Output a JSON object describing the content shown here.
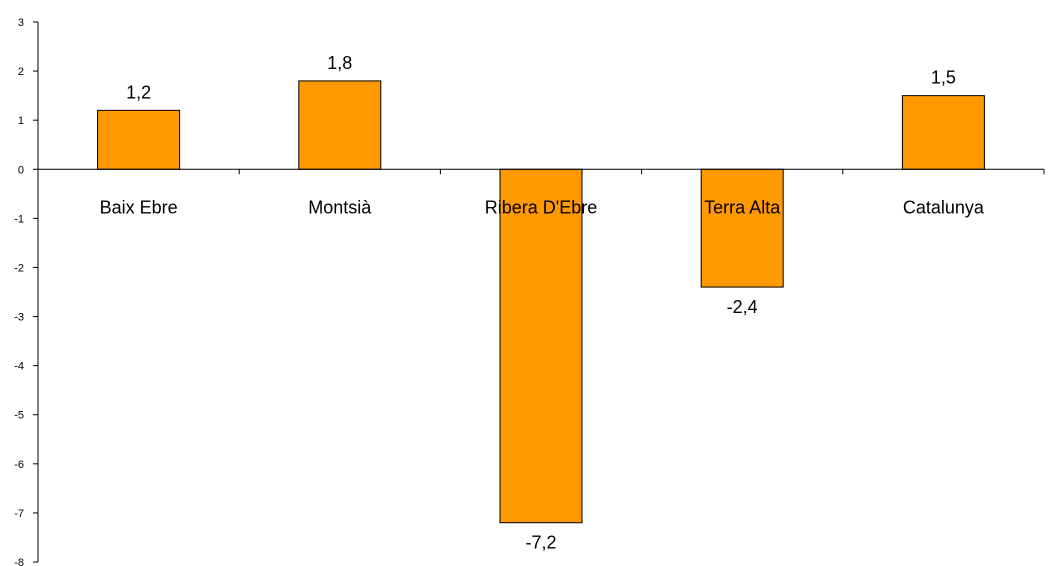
{
  "chart_data": {
    "type": "bar",
    "categories": [
      "Baix Ebre",
      "Montsià",
      "Ribera D'Ebre",
      "Terra Alta",
      "Catalunya"
    ],
    "values": [
      1.2,
      1.8,
      -7.2,
      -2.4,
      1.5
    ],
    "value_labels": [
      "1,2",
      "1,8",
      "-7,2",
      "-2,4",
      "1,5"
    ],
    "ylim": [
      -8,
      3
    ],
    "y_ticks": [
      3,
      2,
      1,
      0,
      -1,
      -2,
      -3,
      -4,
      -5,
      -6,
      -7,
      -8
    ],
    "y_tick_labels": [
      "3",
      "2",
      "1",
      "0",
      "-1",
      "-2",
      "-3",
      "-4",
      "-5",
      "-6",
      "-7",
      "-8"
    ],
    "grid": false,
    "legend": "none",
    "bar_color": "#FF9900",
    "bar_outline": "#000000"
  }
}
